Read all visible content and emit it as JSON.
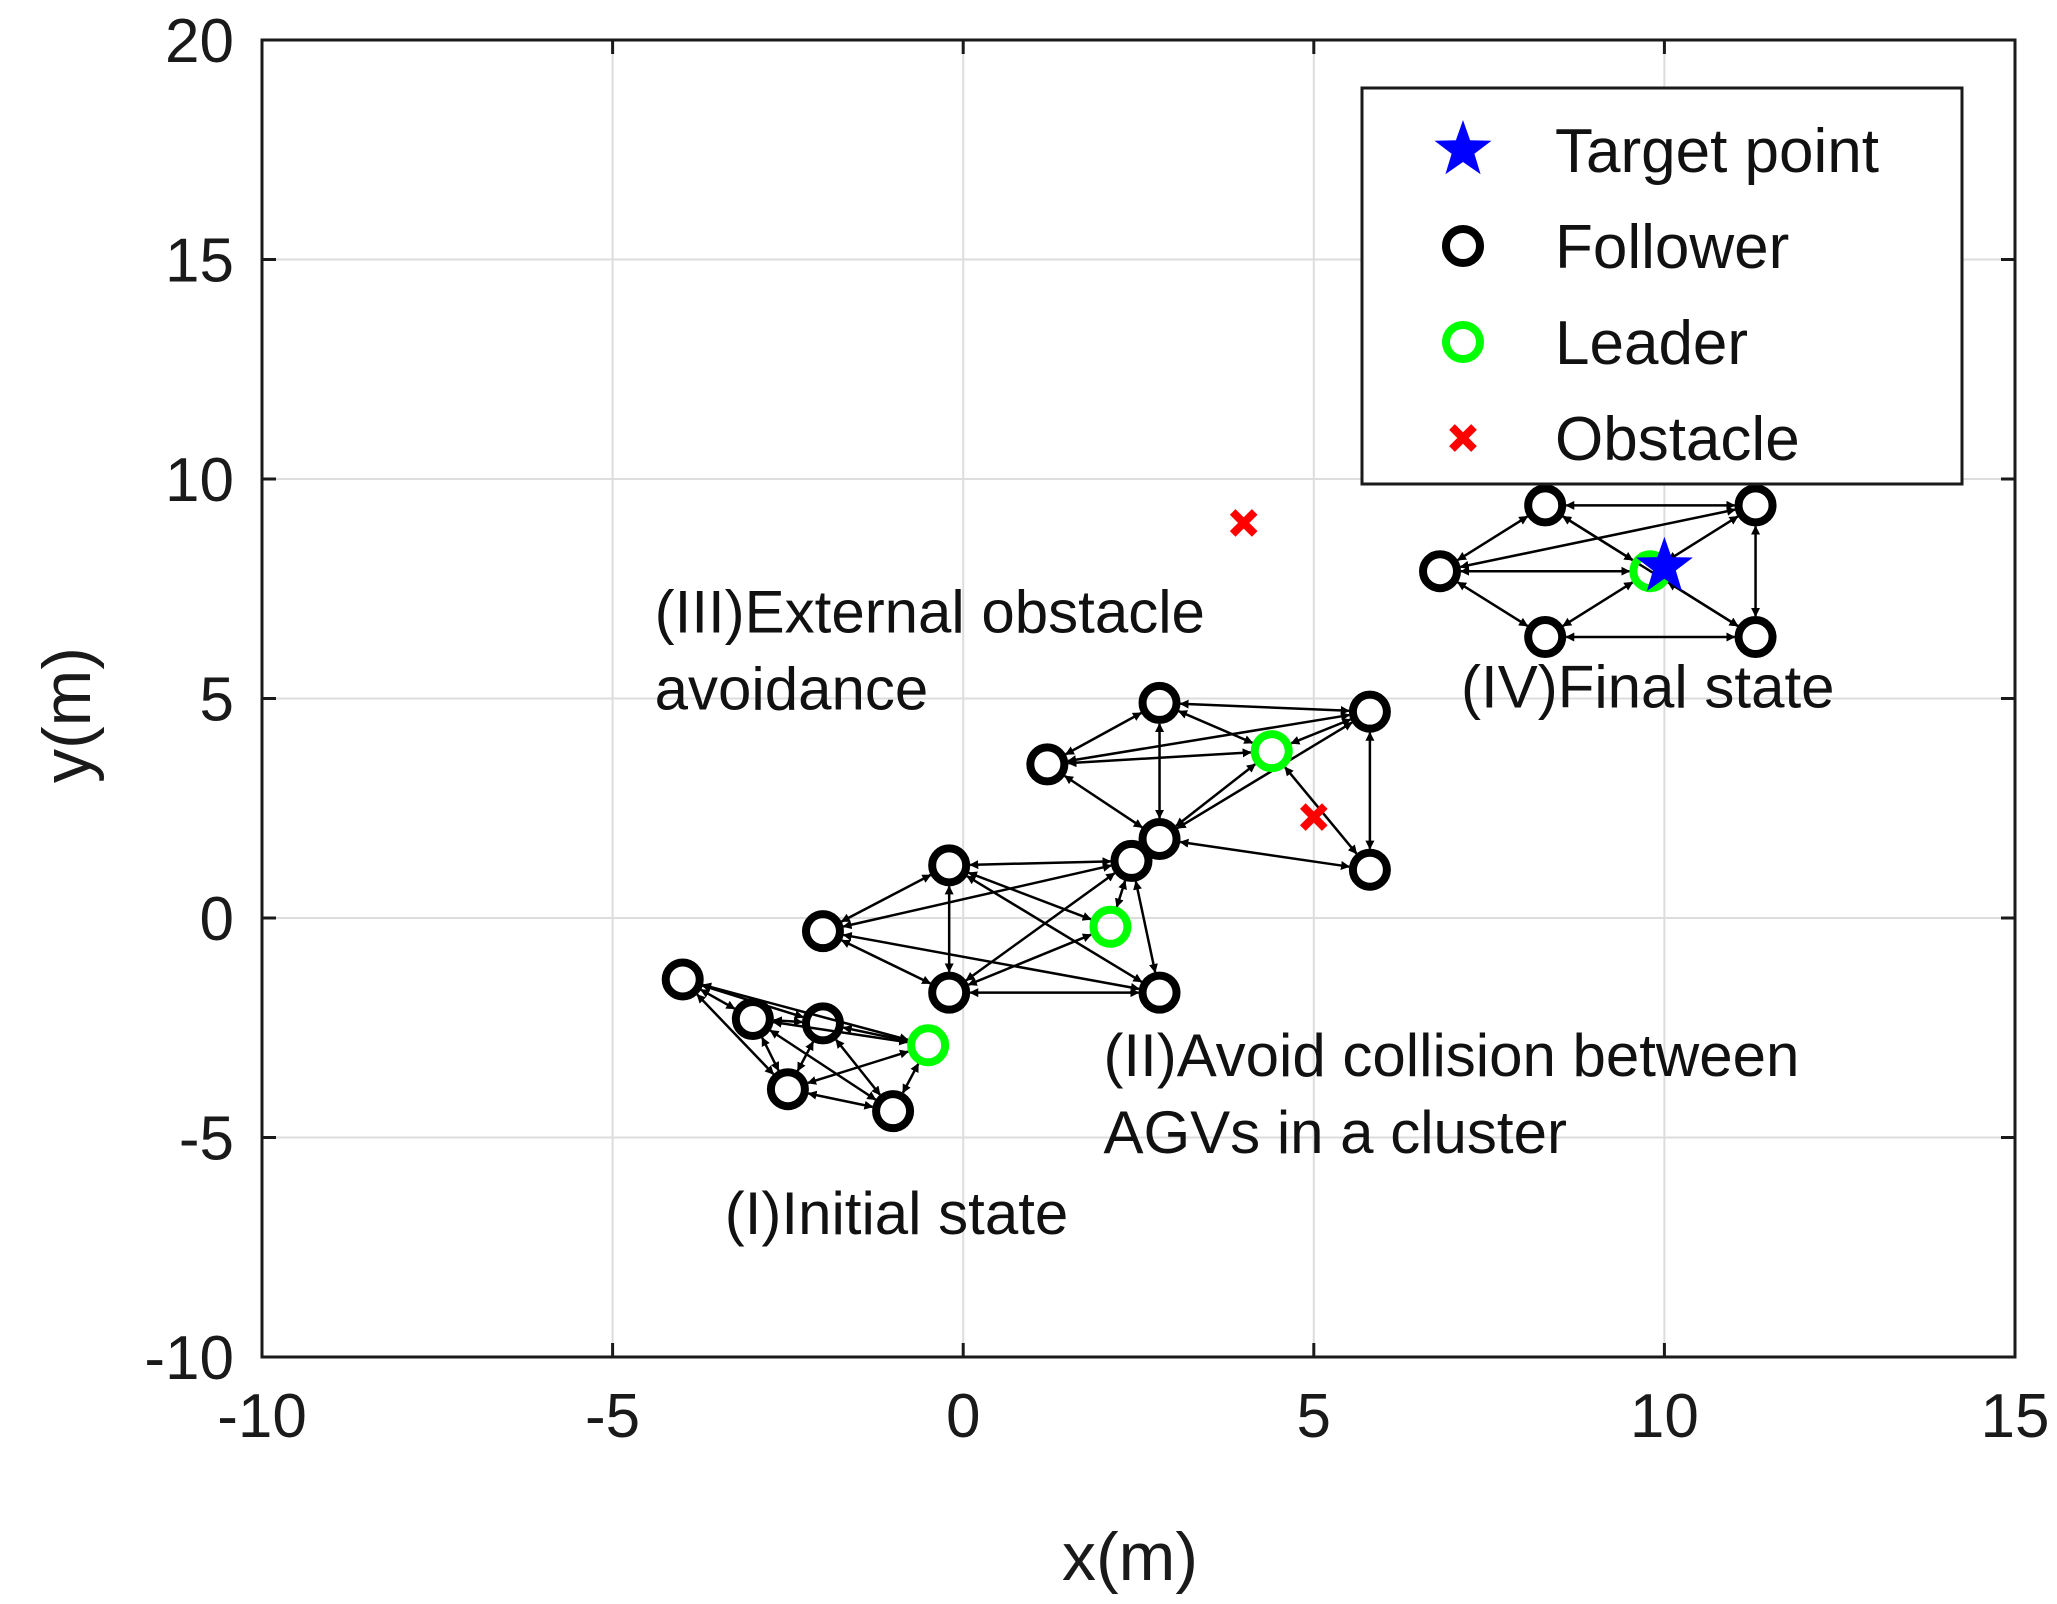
{
  "chart_data": {
    "type": "scatter",
    "title": "",
    "xlabel": "x(m)",
    "ylabel": "y(m)",
    "xlim": [
      -10,
      15
    ],
    "ylim": [
      -10,
      20
    ],
    "xticks": [
      -10,
      -5,
      0,
      5,
      10,
      15
    ],
    "yticks": [
      -10,
      -5,
      0,
      5,
      10,
      15,
      20
    ],
    "xtick_labels": [
      "-10",
      "-5",
      "0",
      "5",
      "10",
      "15"
    ],
    "ytick_labels": [
      "-10",
      "-5",
      "0",
      "5",
      "10",
      "15",
      "20"
    ],
    "grid": true,
    "legend": {
      "position": "top-right",
      "entries": [
        {
          "key": "target",
          "label": "Target point",
          "marker": "star",
          "color": "#0000ff"
        },
        {
          "key": "follower",
          "label": "Follower",
          "marker": "circle",
          "color": "#000000"
        },
        {
          "key": "leader",
          "label": "Leader",
          "marker": "circle",
          "color": "#00ff00"
        },
        {
          "key": "obstacle",
          "label": "Obstacle",
          "marker": "x",
          "color": "#ff0000"
        }
      ]
    },
    "target_point": [
      10,
      8
    ],
    "obstacles": [
      [
        4,
        9
      ],
      [
        5,
        2.3
      ]
    ],
    "clusters": [
      {
        "name": "(I)Initial state",
        "leader": [
          -0.5,
          -2.9
        ],
        "followers": [
          [
            -4,
            -1.4
          ],
          [
            -3,
            -2.3
          ],
          [
            -2,
            -2.4
          ],
          [
            -2.5,
            -3.9
          ],
          [
            -1,
            -4.4
          ]
        ],
        "links": [
          [
            0,
            1
          ],
          [
            0,
            2
          ],
          [
            0,
            3
          ],
          [
            0,
            4
          ],
          [
            0,
            5
          ],
          [
            1,
            2
          ],
          [
            1,
            3
          ],
          [
            1,
            4
          ],
          [
            2,
            3
          ],
          [
            2,
            4
          ],
          [
            3,
            4
          ],
          [
            4,
            5
          ],
          [
            2,
            5
          ],
          [
            3,
            5
          ]
        ]
      },
      {
        "name": "(II)Avoid collision between AGVs in a cluster",
        "leader": [
          2.1,
          -0.2
        ],
        "followers": [
          [
            -2,
            -0.3
          ],
          [
            -0.2,
            1.2
          ],
          [
            2.4,
            1.3
          ],
          [
            -0.2,
            -1.7
          ],
          [
            2.8,
            -1.7
          ]
        ],
        "links": [
          [
            1,
            2
          ],
          [
            1,
            3
          ],
          [
            1,
            4
          ],
          [
            2,
            3
          ],
          [
            2,
            4
          ],
          [
            2,
            5
          ],
          [
            3,
            4
          ],
          [
            3,
            5
          ],
          [
            4,
            5
          ],
          [
            0,
            2
          ],
          [
            0,
            4
          ],
          [
            1,
            5
          ],
          [
            0,
            3
          ]
        ]
      },
      {
        "name": "(III)External obstacle avoidance",
        "leader": [
          4.4,
          3.8
        ],
        "followers": [
          [
            1.2,
            3.5
          ],
          [
            2.8,
            4.9
          ],
          [
            5.8,
            4.7
          ],
          [
            2.8,
            1.8
          ],
          [
            5.8,
            1.1
          ]
        ],
        "links": [
          [
            1,
            2
          ],
          [
            1,
            3
          ],
          [
            1,
            4
          ],
          [
            2,
            3
          ],
          [
            2,
            4
          ],
          [
            2,
            0
          ],
          [
            3,
            5
          ],
          [
            4,
            5
          ],
          [
            0,
            4
          ],
          [
            0,
            5
          ],
          [
            3,
            4
          ],
          [
            0,
            1
          ],
          [
            0,
            3
          ]
        ]
      },
      {
        "name": "(IV)Final state",
        "leader": [
          9.8,
          7.9
        ],
        "followers": [
          [
            6.8,
            7.9
          ],
          [
            8.3,
            9.4
          ],
          [
            11.3,
            9.4
          ],
          [
            8.3,
            6.4
          ],
          [
            11.3,
            6.4
          ]
        ],
        "links": [
          [
            1,
            2
          ],
          [
            1,
            4
          ],
          [
            1,
            0
          ],
          [
            2,
            3
          ],
          [
            2,
            5
          ],
          [
            2,
            0
          ],
          [
            3,
            0
          ],
          [
            3,
            5
          ],
          [
            4,
            5
          ],
          [
            4,
            0
          ],
          [
            5,
            0
          ],
          [
            1,
            3
          ]
        ]
      }
    ],
    "annotations": [
      {
        "key": "ann1",
        "lines": [
          "(I)Initial state"
        ],
        "at": [
          -3.4,
          -7.2
        ]
      },
      {
        "key": "ann2",
        "lines": [
          "(II)Avoid collision between",
          "AGVs in a cluster"
        ],
        "at": [
          2,
          -3.6
        ]
      },
      {
        "key": "ann3",
        "lines": [
          "(III)External obstacle",
          "avoidance"
        ],
        "at": [
          -4.4,
          6.5
        ]
      },
      {
        "key": "ann4",
        "lines": [
          "(IV)Final state"
        ],
        "at": [
          7.1,
          4.8
        ]
      }
    ]
  },
  "colors": {
    "follower": "#000000",
    "leader": "#00ff00",
    "target": "#0000ff",
    "obstacle": "#ff0000",
    "grid": "#dddddd",
    "axis": "#1a1a1a"
  }
}
